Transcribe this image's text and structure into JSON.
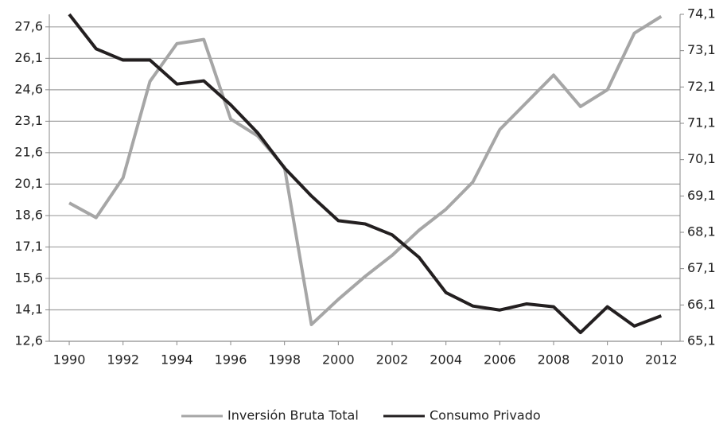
{
  "chart_data": {
    "type": "line",
    "x": [
      1990,
      1991,
      1992,
      1993,
      1994,
      1995,
      1996,
      1997,
      1998,
      1999,
      2000,
      2001,
      2002,
      2003,
      2004,
      2005,
      2006,
      2007,
      2008,
      2009,
      2010,
      2011,
      2012
    ],
    "xlim": [
      1989.26,
      2012.7
    ],
    "xticks": [
      1990,
      1992,
      1994,
      1996,
      1998,
      2000,
      2002,
      2004,
      2006,
      2008,
      2010,
      2012
    ],
    "ylim": [
      12.6,
      28.2
    ],
    "yticks": [
      {
        "value": 12.6,
        "label": "12,6"
      },
      {
        "value": 14.1,
        "label": "14,1"
      },
      {
        "value": 15.6,
        "label": "15,6"
      },
      {
        "value": 17.1,
        "label": "17,1"
      },
      {
        "value": 18.6,
        "label": "18,6"
      },
      {
        "value": 20.1,
        "label": "20,1"
      },
      {
        "value": 21.6,
        "label": "21,6"
      },
      {
        "value": 23.1,
        "label": "23,1"
      },
      {
        "value": 24.6,
        "label": "24,6"
      },
      {
        "value": 26.1,
        "label": "26,1"
      },
      {
        "value": 27.6,
        "label": "27,6"
      }
    ],
    "y2lim": [
      65.1,
      74.1
    ],
    "y2ticks": [
      {
        "value": 65.1,
        "label": "65,1"
      },
      {
        "value": 66.1,
        "label": "66,1"
      },
      {
        "value": 67.1,
        "label": "67,1"
      },
      {
        "value": 68.1,
        "label": "68,1"
      },
      {
        "value": 69.1,
        "label": "69,1"
      },
      {
        "value": 70.1,
        "label": "70,1"
      },
      {
        "value": 71.1,
        "label": "71,1"
      },
      {
        "value": 72.1,
        "label": "72,1"
      },
      {
        "value": 73.1,
        "label": "73,1"
      },
      {
        "value": 74.1,
        "label": "74,1"
      }
    ],
    "grid": true,
    "legend": "bottom",
    "series": [
      {
        "name": "Inversión Bruta Total",
        "color": "#a6a6a6",
        "values": [
          19.2,
          18.5,
          20.4,
          25.0,
          26.8,
          27.0,
          23.2,
          22.4,
          20.9,
          13.4,
          14.6,
          15.7,
          16.7,
          17.9,
          18.9,
          20.2,
          22.7,
          24.0,
          25.3,
          23.8,
          24.6,
          27.3,
          28.1
        ]
      },
      {
        "name": "Consumo Privado",
        "color": "#231f20",
        "axis": "y2",
        "values": [
          74.1,
          73.15,
          72.84,
          72.84,
          72.18,
          72.27,
          71.61,
          70.84,
          69.87,
          69.1,
          68.42,
          68.33,
          68.03,
          67.41,
          66.44,
          66.07,
          65.96,
          66.13,
          66.05,
          65.34,
          66.05,
          65.52,
          65.8
        ]
      }
    ]
  }
}
